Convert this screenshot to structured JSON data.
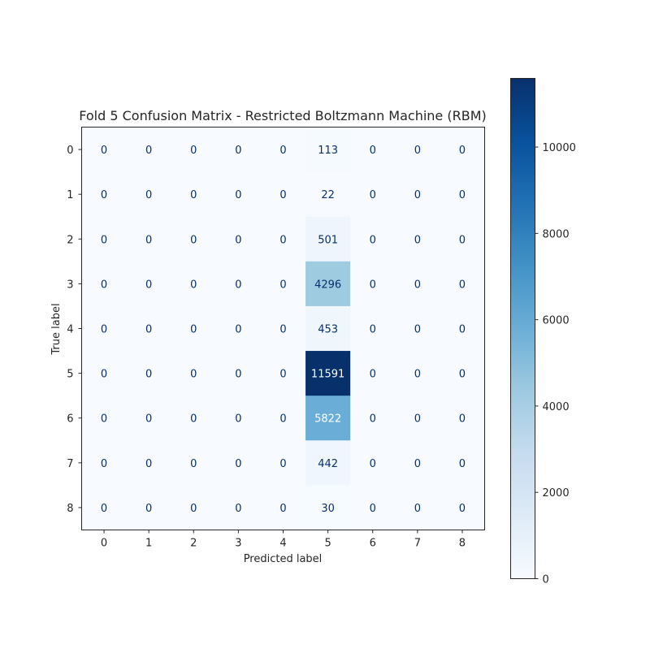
{
  "chart_data": {
    "type": "heatmap",
    "title": "Fold 5 Confusion Matrix - Restricted Boltzmann Machine (RBM)",
    "xlabel": "Predicted label",
    "ylabel": "True label",
    "x_categories": [
      "0",
      "1",
      "2",
      "3",
      "4",
      "5",
      "6",
      "7",
      "8"
    ],
    "y_categories": [
      "0",
      "1",
      "2",
      "3",
      "4",
      "5",
      "6",
      "7",
      "8"
    ],
    "matrix": [
      [
        0,
        0,
        0,
        0,
        0,
        113,
        0,
        0,
        0
      ],
      [
        0,
        0,
        0,
        0,
        0,
        22,
        0,
        0,
        0
      ],
      [
        0,
        0,
        0,
        0,
        0,
        501,
        0,
        0,
        0
      ],
      [
        0,
        0,
        0,
        0,
        0,
        4296,
        0,
        0,
        0
      ],
      [
        0,
        0,
        0,
        0,
        0,
        453,
        0,
        0,
        0
      ],
      [
        0,
        0,
        0,
        0,
        0,
        11591,
        0,
        0,
        0
      ],
      [
        0,
        0,
        0,
        0,
        0,
        5822,
        0,
        0,
        0
      ],
      [
        0,
        0,
        0,
        0,
        0,
        442,
        0,
        0,
        0
      ],
      [
        0,
        0,
        0,
        0,
        0,
        30,
        0,
        0,
        0
      ]
    ],
    "colormap": "Blues",
    "colorbar": {
      "min": 0,
      "max": 11591,
      "ticks": [
        0,
        2000,
        4000,
        6000,
        8000,
        10000
      ],
      "tick_labels": [
        "0",
        "2000",
        "4000",
        "6000",
        "8000",
        "10000"
      ]
    },
    "grid": false
  }
}
